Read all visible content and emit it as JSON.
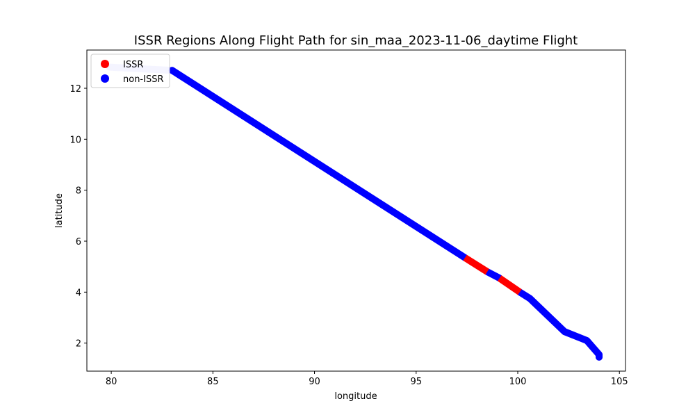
{
  "chart_data": {
    "type": "scatter",
    "title": "ISSR Regions Along Flight Path for sin_maa_2023-11-06_daytime Flight",
    "xlabel": "longitude",
    "ylabel": "latitude",
    "xlim": [
      78.8,
      105.3
    ],
    "ylim": [
      0.9,
      13.5
    ],
    "xticks": [
      80,
      85,
      90,
      95,
      100,
      105
    ],
    "yticks": [
      2,
      4,
      6,
      8,
      10,
      12
    ],
    "grid": false,
    "legend_position": "top-left",
    "series": [
      {
        "name": "ISSR",
        "color": "#ff0000",
        "segments": [
          [
            [
              97.4,
              5.35
            ],
            [
              98.5,
              4.8
            ]
          ],
          [
            [
              99.1,
              4.55
            ],
            [
              100.1,
              4.0
            ]
          ]
        ]
      },
      {
        "name": "non-ISSR",
        "color": "#0000ff",
        "segments": [
          [
            [
              83.0,
              12.7
            ],
            [
              97.4,
              5.35
            ]
          ],
          [
            [
              98.5,
              4.8
            ],
            [
              99.1,
              4.55
            ]
          ],
          [
            [
              100.1,
              4.0
            ],
            [
              100.6,
              3.75
            ],
            [
              102.3,
              2.45
            ],
            [
              103.4,
              2.1
            ],
            [
              104.0,
              1.55
            ],
            [
              104.0,
              1.45
            ]
          ]
        ]
      }
    ],
    "faded_path": [
      [
        79.9,
        12.83
      ],
      [
        83.0,
        12.7
      ]
    ],
    "faded_color": "#c8c8ff"
  }
}
